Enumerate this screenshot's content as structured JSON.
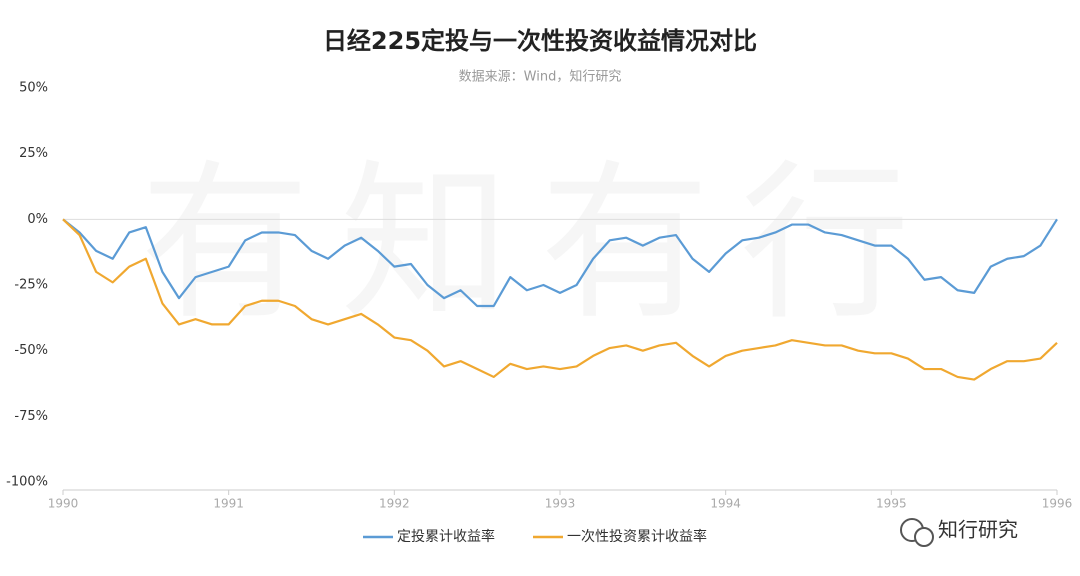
{
  "chart_data": {
    "type": "line",
    "title": "日经225定投与一次性投资收益情况对比",
    "subtitle": "数据来源：Wind，知行研究",
    "watermark": "有知有行",
    "brand": "知行研究",
    "x": [
      1990.0,
      1990.1,
      1990.2,
      1990.3,
      1990.4,
      1990.5,
      1990.6,
      1990.7,
      1990.8,
      1990.9,
      1991.0,
      1991.1,
      1991.2,
      1991.3,
      1991.4,
      1991.5,
      1991.6,
      1991.7,
      1991.8,
      1991.9,
      1992.0,
      1992.1,
      1992.2,
      1992.3,
      1992.4,
      1992.5,
      1992.6,
      1992.7,
      1992.8,
      1992.9,
      1993.0,
      1993.1,
      1993.2,
      1993.3,
      1993.4,
      1993.5,
      1993.6,
      1993.7,
      1993.8,
      1993.9,
      1994.0,
      1994.1,
      1994.2,
      1994.3,
      1994.4,
      1994.5,
      1994.6,
      1994.7,
      1994.8,
      1994.9,
      1995.0,
      1995.1,
      1995.2,
      1995.3,
      1995.4,
      1995.5,
      1995.6,
      1995.7,
      1995.8,
      1995.9,
      1996.0
    ],
    "series": [
      {
        "name": "定投累计收益率",
        "color": "#5b9bd5",
        "values": [
          0,
          -5,
          -12,
          -15,
          -5,
          -3,
          -20,
          -30,
          -22,
          -20,
          -18,
          -8,
          -5,
          -5,
          -6,
          -12,
          -15,
          -10,
          -7,
          -12,
          -18,
          -17,
          -25,
          -30,
          -27,
          -33,
          -33,
          -22,
          -27,
          -25,
          -28,
          -25,
          -15,
          -8,
          -7,
          -10,
          -7,
          -6,
          -15,
          -20,
          -13,
          -8,
          -7,
          -5,
          -2,
          -2,
          -5,
          -6,
          -8,
          -10,
          -10,
          -15,
          -23,
          -22,
          -27,
          -28,
          -18,
          -15,
          -14,
          -10,
          0
        ]
      },
      {
        "name": "一次性投资累计收益率",
        "color": "#f0a830",
        "values": [
          0,
          -6,
          -20,
          -24,
          -18,
          -15,
          -32,
          -40,
          -38,
          -40,
          -40,
          -33,
          -31,
          -31,
          -33,
          -38,
          -40,
          -38,
          -36,
          -40,
          -45,
          -46,
          -50,
          -56,
          -54,
          -57,
          -60,
          -55,
          -57,
          -56,
          -57,
          -56,
          -52,
          -49,
          -48,
          -50,
          -48,
          -47,
          -52,
          -56,
          -52,
          -50,
          -49,
          -48,
          -46,
          -47,
          -48,
          -48,
          -50,
          -51,
          -51,
          -53,
          -57,
          -57,
          -60,
          -61,
          -57,
          -54,
          -54,
          -53,
          -47
        ]
      }
    ],
    "xlim": [
      1990,
      1996
    ],
    "xticks": [
      1990,
      1991,
      1992,
      1993,
      1994,
      1995,
      1996
    ],
    "ylim": [
      -100,
      50
    ],
    "yticks": [
      {
        "value": 50,
        "label": "50%"
      },
      {
        "value": 25,
        "label": "25%"
      },
      {
        "value": 0,
        "label": "0%"
      },
      {
        "value": -25,
        "label": "-25%"
      },
      {
        "value": -50,
        "label": "-50%"
      },
      {
        "value": -75,
        "label": "-75%"
      },
      {
        "value": -100,
        "label": "-100%"
      }
    ],
    "legend": "bottom"
  }
}
